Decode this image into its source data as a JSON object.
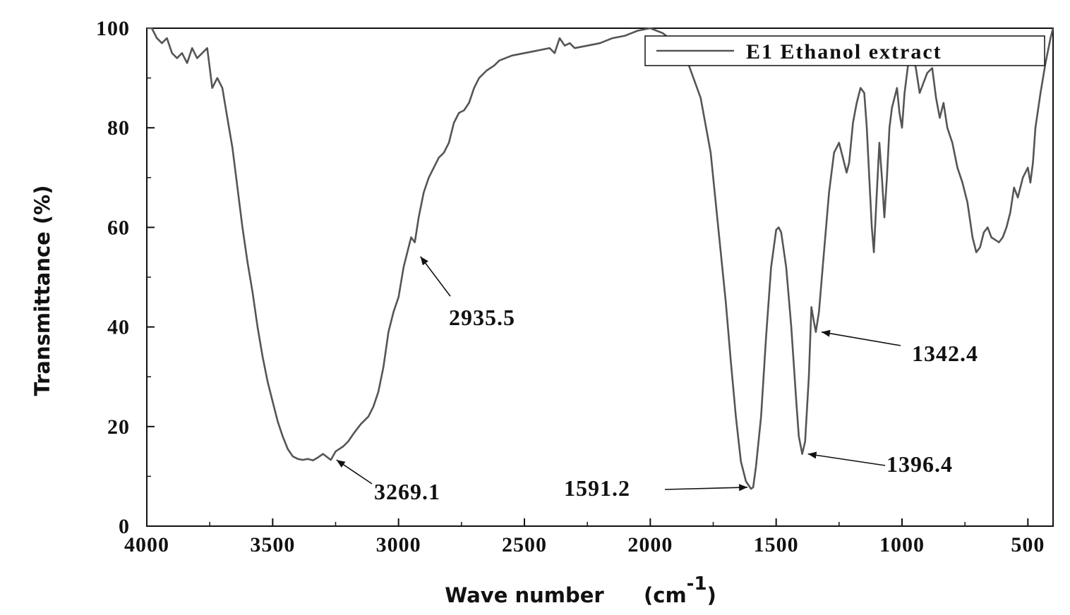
{
  "chart_data": {
    "type": "line",
    "title": "",
    "xlabel": "Wave number",
    "xlabel_unit_base": "(cm",
    "xlabel_unit_exp": "-1",
    "xlabel_unit_close": ")",
    "ylabel": "Transmittance (%)",
    "xlim": [
      4000,
      400
    ],
    "x_reversed": true,
    "ylim": [
      0,
      100
    ],
    "x_ticks": [
      4000,
      3500,
      3000,
      2500,
      2000,
      1500,
      1000,
      500
    ],
    "y_ticks": [
      0,
      20,
      40,
      60,
      80,
      100
    ],
    "grid": false,
    "legend": {
      "position": "top-right",
      "entries": [
        "E1 Ethanol extract"
      ]
    },
    "series": [
      {
        "name": "E1 Ethanol extract",
        "color": "#555555",
        "points": [
          [
            4000,
            100
          ],
          [
            3980,
            100
          ],
          [
            3960,
            98
          ],
          [
            3940,
            97
          ],
          [
            3920,
            98
          ],
          [
            3900,
            95
          ],
          [
            3880,
            94
          ],
          [
            3860,
            95
          ],
          [
            3840,
            93
          ],
          [
            3820,
            96
          ],
          [
            3800,
            94
          ],
          [
            3780,
            95
          ],
          [
            3760,
            96
          ],
          [
            3750,
            92
          ],
          [
            3740,
            88
          ],
          [
            3720,
            90
          ],
          [
            3700,
            88
          ],
          [
            3680,
            82
          ],
          [
            3660,
            76
          ],
          [
            3640,
            68
          ],
          [
            3620,
            60
          ],
          [
            3600,
            53
          ],
          [
            3580,
            47
          ],
          [
            3560,
            40
          ],
          [
            3540,
            34
          ],
          [
            3520,
            29
          ],
          [
            3500,
            25
          ],
          [
            3480,
            21
          ],
          [
            3460,
            18
          ],
          [
            3440,
            15.5
          ],
          [
            3420,
            14
          ],
          [
            3400,
            13.5
          ],
          [
            3380,
            13.3
          ],
          [
            3360,
            13.5
          ],
          [
            3340,
            13.2
          ],
          [
            3320,
            13.8
          ],
          [
            3300,
            14.5
          ],
          [
            3269,
            13.3
          ],
          [
            3250,
            15
          ],
          [
            3220,
            16
          ],
          [
            3200,
            17
          ],
          [
            3180,
            18.5
          ],
          [
            3150,
            20.5
          ],
          [
            3120,
            22
          ],
          [
            3100,
            24
          ],
          [
            3080,
            27
          ],
          [
            3060,
            32
          ],
          [
            3040,
            39
          ],
          [
            3020,
            43
          ],
          [
            3000,
            46
          ],
          [
            2980,
            52
          ],
          [
            2960,
            56
          ],
          [
            2950,
            58
          ],
          [
            2935.5,
            57
          ],
          [
            2920,
            62
          ],
          [
            2900,
            67
          ],
          [
            2880,
            70
          ],
          [
            2860,
            72
          ],
          [
            2840,
            74
          ],
          [
            2820,
            75
          ],
          [
            2800,
            77
          ],
          [
            2780,
            81
          ],
          [
            2760,
            83
          ],
          [
            2740,
            83.5
          ],
          [
            2720,
            85
          ],
          [
            2700,
            88
          ],
          [
            2680,
            90
          ],
          [
            2650,
            91.5
          ],
          [
            2620,
            92.5
          ],
          [
            2600,
            93.5
          ],
          [
            2550,
            94.5
          ],
          [
            2500,
            95
          ],
          [
            2450,
            95.5
          ],
          [
            2400,
            96
          ],
          [
            2380,
            95
          ],
          [
            2360,
            98
          ],
          [
            2340,
            96.5
          ],
          [
            2320,
            97
          ],
          [
            2300,
            96
          ],
          [
            2250,
            96.5
          ],
          [
            2200,
            97
          ],
          [
            2150,
            98
          ],
          [
            2100,
            98.5
          ],
          [
            2050,
            99.5
          ],
          [
            2000,
            100
          ],
          [
            1950,
            99
          ],
          [
            1900,
            97
          ],
          [
            1850,
            93
          ],
          [
            1800,
            86
          ],
          [
            1760,
            75
          ],
          [
            1730,
            60
          ],
          [
            1700,
            45
          ],
          [
            1680,
            33
          ],
          [
            1660,
            22
          ],
          [
            1640,
            13
          ],
          [
            1620,
            9
          ],
          [
            1600,
            7.5
          ],
          [
            1591.2,
            7.8
          ],
          [
            1580,
            12
          ],
          [
            1560,
            22
          ],
          [
            1540,
            38
          ],
          [
            1520,
            52
          ],
          [
            1500,
            59.5
          ],
          [
            1490,
            60
          ],
          [
            1480,
            59
          ],
          [
            1460,
            52
          ],
          [
            1440,
            40
          ],
          [
            1420,
            25
          ],
          [
            1410,
            18
          ],
          [
            1396.4,
            14.5
          ],
          [
            1385,
            17
          ],
          [
            1370,
            30
          ],
          [
            1360,
            44
          ],
          [
            1350,
            41
          ],
          [
            1342.4,
            39
          ],
          [
            1330,
            43
          ],
          [
            1310,
            55
          ],
          [
            1290,
            67
          ],
          [
            1270,
            75
          ],
          [
            1250,
            77
          ],
          [
            1235,
            74
          ],
          [
            1220,
            71
          ],
          [
            1210,
            73
          ],
          [
            1195,
            81
          ],
          [
            1180,
            85
          ],
          [
            1165,
            88
          ],
          [
            1150,
            87
          ],
          [
            1140,
            80
          ],
          [
            1130,
            70
          ],
          [
            1120,
            60
          ],
          [
            1112,
            55
          ],
          [
            1100,
            67
          ],
          [
            1090,
            77
          ],
          [
            1080,
            70
          ],
          [
            1070,
            62
          ],
          [
            1060,
            70
          ],
          [
            1050,
            80
          ],
          [
            1040,
            84
          ],
          [
            1030,
            86
          ],
          [
            1020,
            88
          ],
          [
            1010,
            83
          ],
          [
            1000,
            80
          ],
          [
            990,
            87
          ],
          [
            975,
            93
          ],
          [
            960,
            95
          ],
          [
            945,
            92
          ],
          [
            930,
            87
          ],
          [
            915,
            89
          ],
          [
            900,
            91
          ],
          [
            880,
            92
          ],
          [
            865,
            86
          ],
          [
            850,
            82
          ],
          [
            835,
            85
          ],
          [
            820,
            80
          ],
          [
            800,
            77
          ],
          [
            780,
            72
          ],
          [
            760,
            69
          ],
          [
            740,
            65
          ],
          [
            720,
            58
          ],
          [
            705,
            55
          ],
          [
            690,
            56
          ],
          [
            675,
            59
          ],
          [
            660,
            60
          ],
          [
            645,
            58
          ],
          [
            630,
            57.5
          ],
          [
            615,
            57
          ],
          [
            600,
            58
          ],
          [
            585,
            60
          ],
          [
            570,
            63
          ],
          [
            555,
            68
          ],
          [
            540,
            66
          ],
          [
            520,
            70
          ],
          [
            500,
            72
          ],
          [
            490,
            69
          ],
          [
            480,
            73
          ],
          [
            470,
            80
          ],
          [
            450,
            87
          ],
          [
            430,
            93
          ],
          [
            410,
            98
          ],
          [
            400,
            100
          ]
        ]
      }
    ],
    "annotations": [
      {
        "label": "3269.1",
        "x": 3269.1,
        "y": 13.3
      },
      {
        "label": "2935.5",
        "x": 2935.5,
        "y": 55
      },
      {
        "label": "1591.2",
        "x": 1591.2,
        "y": 7.8
      },
      {
        "label": "1396.4",
        "x": 1396.4,
        "y": 14.5
      },
      {
        "label": "1342.4",
        "x": 1342.4,
        "y": 39
      }
    ]
  }
}
